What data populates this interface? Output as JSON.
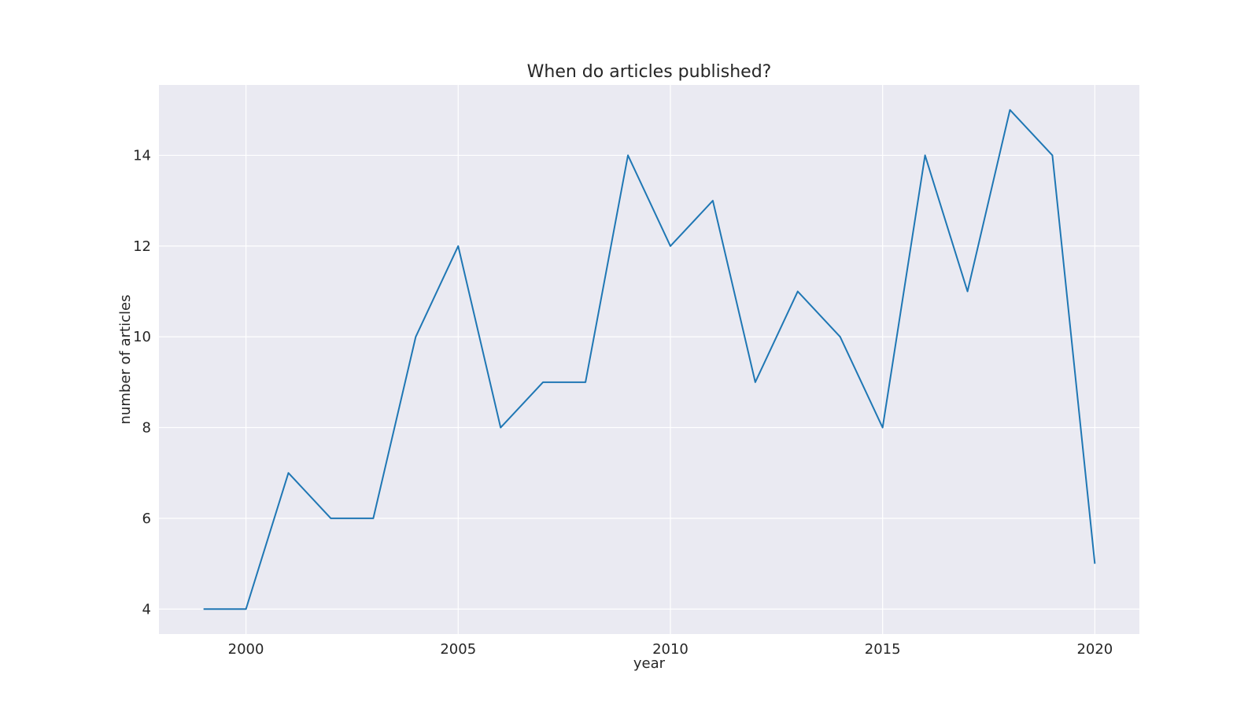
{
  "chart_data": {
    "type": "line",
    "title": "When do articles published?",
    "xlabel": "year",
    "ylabel": "number of articles",
    "xlim": [
      1997.95,
      2021.05
    ],
    "ylim": [
      3.45,
      15.55
    ],
    "x_ticks": [
      2000,
      2005,
      2010,
      2015,
      2020
    ],
    "y_ticks": [
      4,
      6,
      8,
      10,
      12,
      14
    ],
    "grid": true,
    "legend": "none",
    "colors": {
      "series": "#1f77b4",
      "background": "#eaeaf2",
      "grid": "#ffffff"
    },
    "x": [
      1999,
      2000,
      2001,
      2002,
      2003,
      2004,
      2005,
      2006,
      2007,
      2008,
      2009,
      2010,
      2011,
      2012,
      2013,
      2014,
      2015,
      2016,
      2017,
      2018,
      2019,
      2020
    ],
    "series": [
      {
        "values": [
          4,
          4,
          7,
          6,
          6,
          10,
          12,
          8,
          9,
          9,
          14,
          12,
          13,
          9,
          11,
          10,
          8,
          14,
          11,
          15,
          14,
          5
        ]
      }
    ]
  }
}
